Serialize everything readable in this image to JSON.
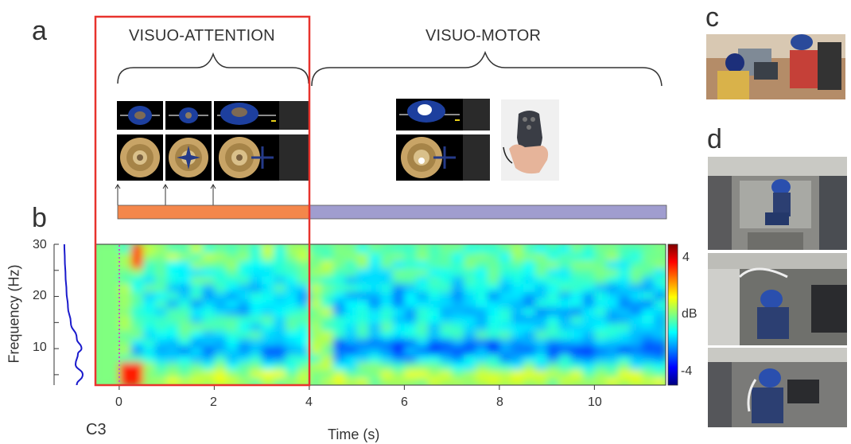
{
  "panels": {
    "a": "a",
    "b": "b",
    "c": "c",
    "d": "d"
  },
  "phases": {
    "attention": "VISUO-ATTENTION",
    "motor": "VISUO-MOTOR"
  },
  "colors": {
    "attention_bar": "#f4874b",
    "motor_bar": "#a09dcf",
    "highlight_box": "#e8332d",
    "marker_line": "#c060c0"
  },
  "spectrogram": {
    "xlabel": "Time (s)",
    "ylabel": "Frequency (Hz)",
    "x_ticks": [
      "0",
      "2",
      "4",
      "6",
      "8",
      "10"
    ],
    "y_ticks": [
      "30",
      "20",
      "10"
    ],
    "colorbar_label": "dB",
    "colorbar_ticks": [
      "4",
      "-4"
    ],
    "channel": "C3",
    "xlim": [
      -0.5,
      11.5
    ],
    "ylim": [
      3,
      30
    ],
    "clim": [
      -5,
      5
    ]
  },
  "chart_data": {
    "type": "heatmap",
    "title": "",
    "xlabel": "Time (s)",
    "ylabel": "Frequency (Hz)",
    "x_ticks": [
      0,
      2,
      4,
      6,
      8,
      10
    ],
    "y_ticks": [
      10,
      20,
      30
    ],
    "xlim": [
      -0.5,
      11.5
    ],
    "ylim": [
      3,
      30
    ],
    "colorbar": {
      "label": "dB",
      "range": [
        -5,
        5
      ],
      "ticks": [
        4,
        -4
      ]
    },
    "power_spectrum_C3": {
      "frequency_hz": [
        3,
        5,
        7,
        9,
        10,
        12,
        15,
        18,
        21,
        24,
        27,
        30
      ],
      "relative_power": [
        0.55,
        0.8,
        0.5,
        0.6,
        0.75,
        0.55,
        0.3,
        0.18,
        0.12,
        0.08,
        0.05,
        0.03
      ]
    },
    "phase_markers_s": [
      0,
      1,
      2
    ],
    "phases": [
      {
        "name": "VISUO-ATTENTION",
        "start": 0,
        "end": 4
      },
      {
        "name": "VISUO-MOTOR",
        "start": 4,
        "end": 11.5
      }
    ]
  }
}
